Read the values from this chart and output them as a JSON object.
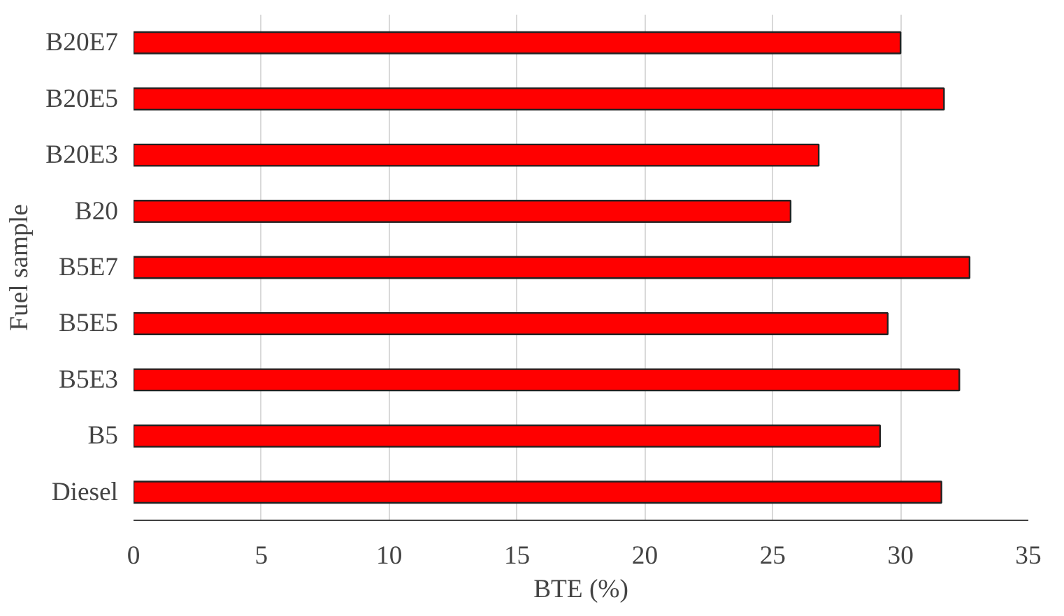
{
  "chart_data": {
    "type": "bar",
    "orientation": "horizontal",
    "xlabel": "BTE (%)",
    "ylabel": "Fuel sample",
    "categories": [
      "B20E7",
      "B20E5",
      "B20E3",
      "B20",
      "B5E7",
      "B5E5",
      "B5E3",
      "B5",
      "Diesel"
    ],
    "values": [
      30.0,
      31.7,
      26.8,
      25.7,
      32.7,
      29.5,
      32.3,
      29.2,
      31.6
    ],
    "color": "#ff0000",
    "xlim": [
      0,
      35
    ],
    "xticks": [
      0,
      5,
      10,
      15,
      20,
      25,
      30,
      35
    ],
    "grid": "x"
  }
}
